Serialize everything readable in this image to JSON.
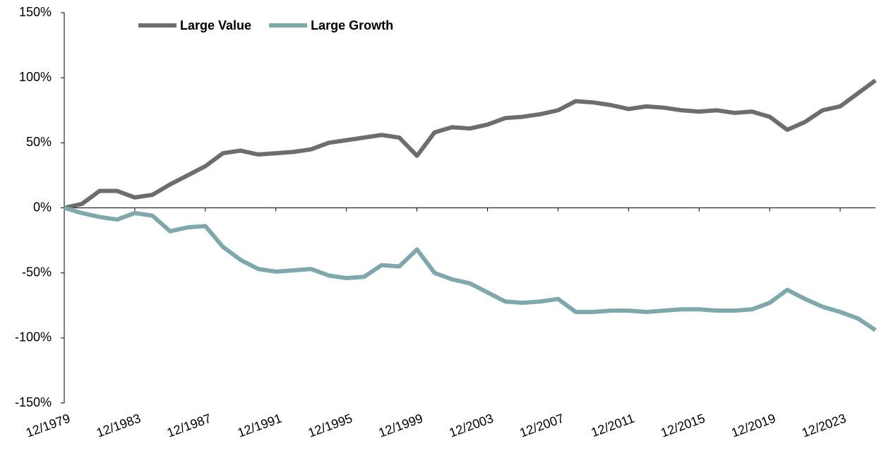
{
  "chart_data": {
    "type": "line",
    "x": [
      "12/1979",
      "12/1980",
      "12/1981",
      "12/1982",
      "12/1983",
      "12/1984",
      "12/1985",
      "12/1986",
      "12/1987",
      "12/1988",
      "12/1989",
      "12/1990",
      "12/1991",
      "12/1992",
      "12/1993",
      "12/1994",
      "12/1995",
      "12/1996",
      "12/1997",
      "12/1998",
      "12/1999",
      "12/2000",
      "12/2001",
      "12/2002",
      "12/2003",
      "12/2004",
      "12/2005",
      "12/2006",
      "12/2007",
      "12/2008",
      "12/2009",
      "12/2010",
      "12/2011",
      "12/2012",
      "12/2013",
      "12/2014",
      "12/2015",
      "12/2016",
      "12/2017",
      "12/2018",
      "12/2019",
      "12/2020",
      "12/2021",
      "12/2022",
      "12/2023",
      "12/2024",
      "12/2025"
    ],
    "series": [
      {
        "name": "Large Value",
        "color": "#6d6d6d",
        "values": [
          0,
          3,
          13,
          13,
          8,
          10,
          18,
          25,
          32,
          42,
          44,
          41,
          42,
          43,
          45,
          50,
          52,
          54,
          56,
          54,
          40,
          58,
          62,
          61,
          64,
          69,
          70,
          72,
          75,
          82,
          81,
          79,
          76,
          78,
          77,
          75,
          74,
          75,
          73,
          74,
          70,
          60,
          66,
          75,
          78,
          88,
          98
        ]
      },
      {
        "name": "Large Growth",
        "color": "#7fa8ac",
        "values": [
          0,
          -4,
          -7,
          -9,
          -4,
          -6,
          -18,
          -15,
          -14,
          -30,
          -40,
          -47,
          -49,
          -48,
          -47,
          -52,
          -54,
          -53,
          -44,
          -45,
          -32,
          -50,
          -55,
          -58,
          -65,
          -72,
          -73,
          -72,
          -70,
          -80,
          -80,
          -79,
          -79,
          -80,
          -79,
          -78,
          -78,
          -79,
          -79,
          -78,
          -73,
          -63,
          -70,
          -76,
          -80,
          -85,
          -94
        ]
      }
    ],
    "ylim": [
      -150,
      150
    ],
    "yticks": [
      {
        "value": -150,
        "label": "-150%"
      },
      {
        "value": -100,
        "label": "-100%"
      },
      {
        "value": -50,
        "label": "-50%"
      },
      {
        "value": 0,
        "label": "0%"
      },
      {
        "value": 50,
        "label": "50%"
      },
      {
        "value": 100,
        "label": "100%"
      },
      {
        "value": 150,
        "label": "150%"
      }
    ],
    "legend": "top-left"
  }
}
